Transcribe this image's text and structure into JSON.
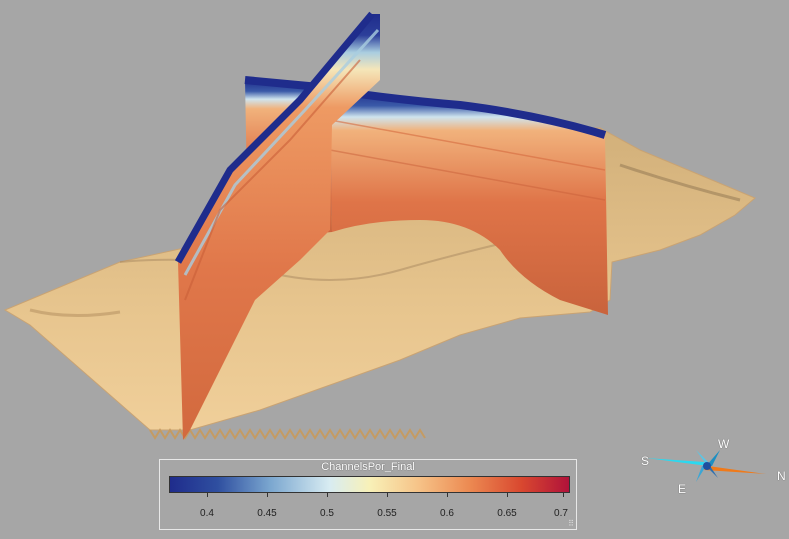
{
  "legend": {
    "title": "ChannelsPor_Final",
    "ticks": [
      "0.4",
      "0.45",
      "0.5",
      "0.55",
      "0.6",
      "0.65",
      "0.7"
    ],
    "colors": [
      "#1f2c8c",
      "#2f4fa0",
      "#7aa6cf",
      "#d8ecf2",
      "#f8f1b8",
      "#f6c489",
      "#ec8a52",
      "#d9482f",
      "#b0123a"
    ]
  },
  "compass": {
    "n": "N",
    "s": "S",
    "e": "E",
    "w": "W"
  }
}
